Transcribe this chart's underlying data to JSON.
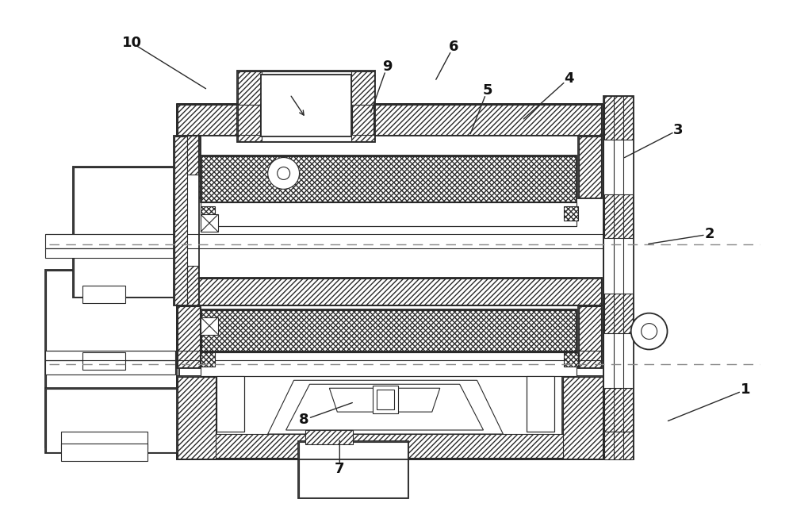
{
  "bg_color": "#ffffff",
  "line_color": "#2a2a2a",
  "figsize": [
    10.0,
    6.39
  ],
  "dpi": 100,
  "labels_img": {
    "1": [
      942,
      492,
      840,
      533
    ],
    "2": [
      897,
      295,
      815,
      308
    ],
    "3": [
      857,
      163,
      785,
      200
    ],
    "4": [
      718,
      98,
      658,
      152
    ],
    "5": [
      615,
      113,
      592,
      172
    ],
    "6": [
      572,
      58,
      548,
      103
    ],
    "7": [
      428,
      592,
      428,
      552
    ],
    "8": [
      383,
      530,
      448,
      507
    ],
    "9": [
      488,
      83,
      466,
      145
    ],
    "10": [
      165,
      53,
      262,
      113
    ]
  }
}
